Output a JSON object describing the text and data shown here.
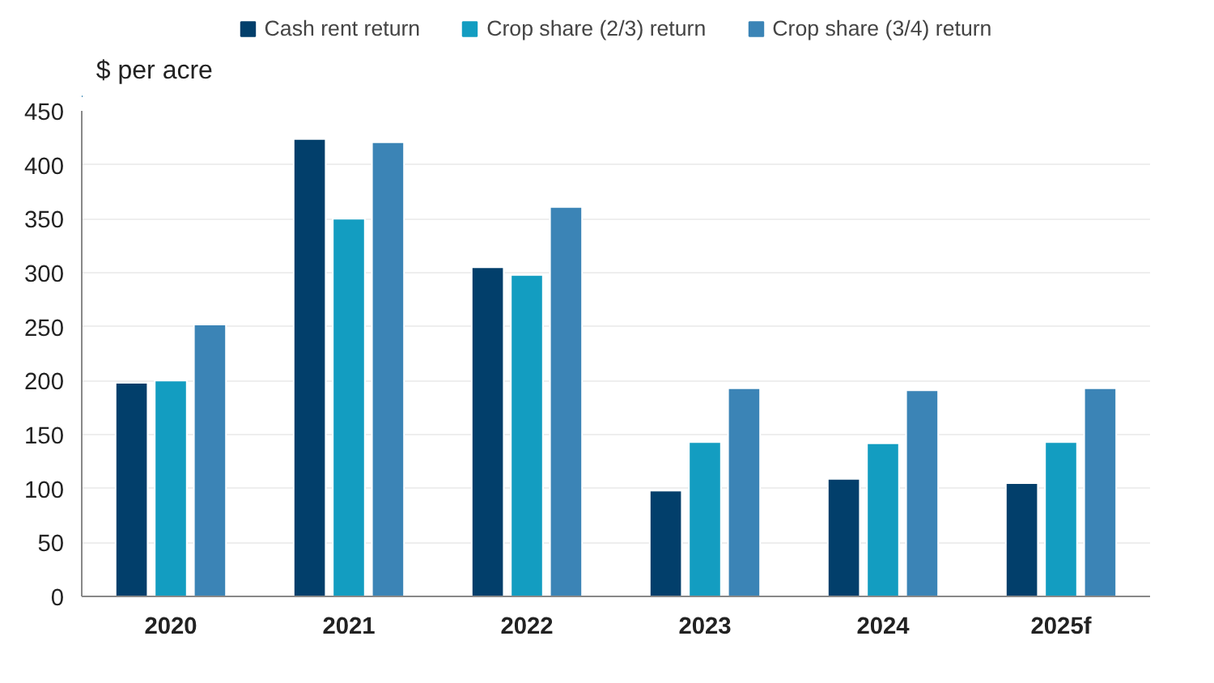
{
  "chart_data": {
    "type": "bar",
    "ylabel": "$ per acre",
    "categories": [
      "2020",
      "2021",
      "2022",
      "2023",
      "2024",
      "2025f"
    ],
    "series": [
      {
        "name": "Cash rent return",
        "color": "#023f6b",
        "values": [
          198,
          424,
          305,
          98,
          109,
          105
        ]
      },
      {
        "name": "Crop share (2/3) return",
        "color": "#139dc1",
        "values": [
          200,
          350,
          298,
          143,
          142,
          143
        ]
      },
      {
        "name": "Crop share (3/4) return",
        "color": "#3b84b6",
        "values": [
          252,
          421,
          361,
          193,
          191,
          193
        ]
      }
    ],
    "ylim": [
      0,
      450
    ],
    "yticks": [
      0,
      50,
      100,
      150,
      200,
      250,
      300,
      350,
      400,
      450
    ],
    "grid": "y",
    "legend": "top"
  }
}
